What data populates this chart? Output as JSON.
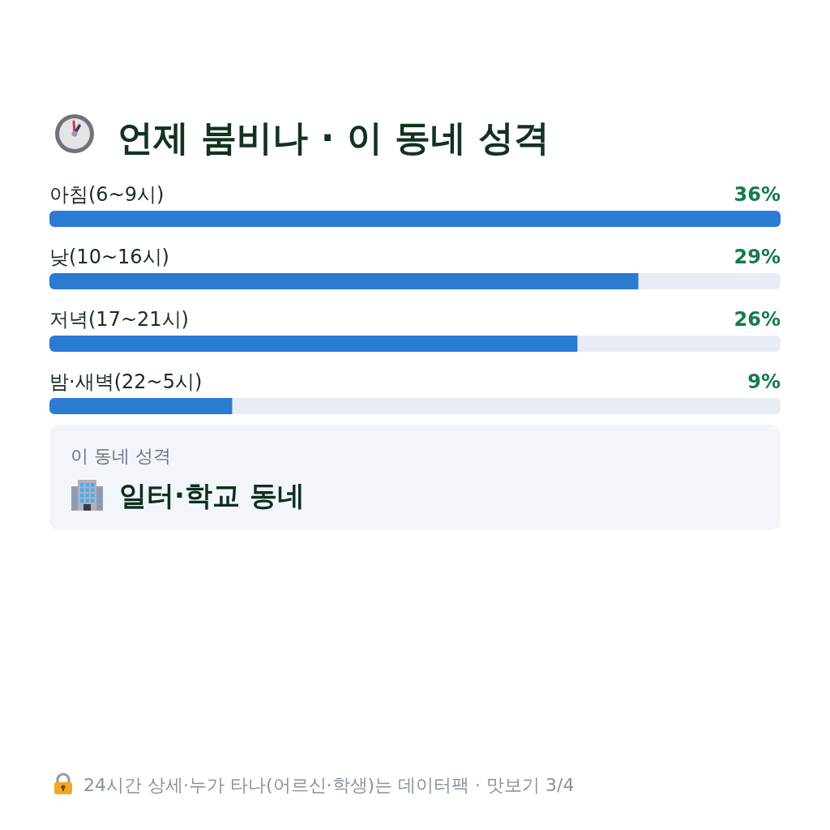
{
  "chart_data": [
    {
      "type": "bar",
      "title": "언제 붐비나 · 이 동네 성격",
      "orientation": "horizontal",
      "categories": [
        "아침(6~9시)",
        "낮(10~16시)",
        "저녁(17~21시)",
        "밤·새벽(22~5시)"
      ],
      "values": [
        36,
        29,
        26,
        9
      ],
      "color": "#2b7bd3",
      "value_labels": [
        "36%",
        "29%",
        "26%",
        "9%"
      ],
      "annotations": [
        "24시간 상세·누가 타나(어르신·학생)는 데이터팩 · 맛보기 3/4"
      ]
    },
    {
      "type": "other",
      "title": "이 동네 성격",
      "annotations": [
        "일터·학교 동네"
      ]
    }
  ]
}
